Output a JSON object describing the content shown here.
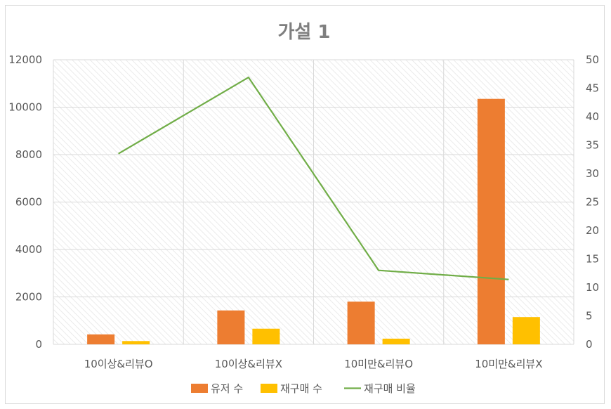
{
  "chart_data": {
    "type": "bar",
    "title": "가설 1",
    "categories": [
      "10이상&리뷰O",
      "10이상&리뷰X",
      "10미만&리뷰O",
      "10미만&리뷰X"
    ],
    "series": [
      {
        "name": "유저 수",
        "kind": "bar",
        "axis": "left",
        "color": "#ed7d31",
        "values": [
          420,
          1430,
          1800,
          10350
        ]
      },
      {
        "name": "재구매 수",
        "kind": "bar",
        "axis": "left",
        "color": "#ffc000",
        "values": [
          140,
          660,
          240,
          1150
        ]
      },
      {
        "name": "재구매 비율",
        "kind": "line",
        "axis": "right",
        "color": "#70ad47",
        "values": [
          33.5,
          46.9,
          13.0,
          11.4
        ]
      }
    ],
    "y_left": {
      "min": 0,
      "max": 12000,
      "ticks": [
        "0",
        "2000",
        "4000",
        "6000",
        "8000",
        "10000",
        "12000"
      ]
    },
    "y_right": {
      "min": 0,
      "max": 50,
      "ticks": [
        "0",
        "5",
        "10",
        "15",
        "20",
        "25",
        "30",
        "35",
        "40",
        "45",
        "50"
      ]
    },
    "grid": true,
    "legend": "bottom"
  }
}
